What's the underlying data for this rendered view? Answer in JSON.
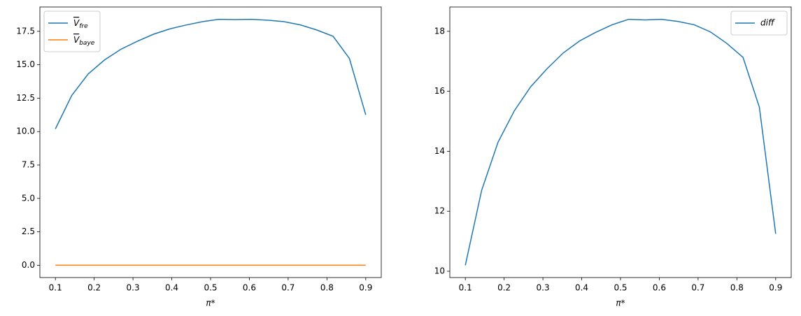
{
  "chart_data": [
    {
      "type": "line",
      "xlabel": "π*",
      "legend": "upper left",
      "x": [
        0.1,
        0.1421,
        0.1842,
        0.2263,
        0.2684,
        0.3105,
        0.3526,
        0.3947,
        0.4368,
        0.4789,
        0.5211,
        0.5632,
        0.6053,
        0.6474,
        0.6895,
        0.7316,
        0.7737,
        0.8158,
        0.8579,
        0.9
      ],
      "series": [
        {
          "name": "Vfre",
          "color": "#1f77b4",
          "values": [
            10.2,
            12.7,
            14.3,
            15.35,
            16.15,
            16.75,
            17.28,
            17.68,
            17.97,
            18.22,
            18.4,
            18.38,
            18.4,
            18.33,
            18.22,
            17.98,
            17.6,
            17.13,
            15.47,
            11.25
          ]
        },
        {
          "name": "Vbaye",
          "color": "#ff7f0e",
          "values": [
            0,
            0,
            0,
            0,
            0,
            0,
            0,
            0,
            0,
            0,
            0,
            0,
            0,
            0,
            0,
            0,
            0,
            0,
            0,
            0
          ]
        }
      ],
      "xlim": [
        0.06,
        0.94
      ],
      "xticks": [
        0.1,
        0.2,
        0.3,
        0.4,
        0.5,
        0.6,
        0.7,
        0.8,
        0.9
      ],
      "ylim": [
        -0.92,
        19.32
      ],
      "yticks": [
        {
          "value": 0,
          "label": "0.0"
        },
        {
          "value": 2.5,
          "label": "2.5"
        },
        {
          "value": 5,
          "label": "5.0"
        },
        {
          "value": 7.5,
          "label": "7.5"
        },
        {
          "value": 10,
          "label": "10.0"
        },
        {
          "value": 12.5,
          "label": "12.5"
        },
        {
          "value": 15,
          "label": "15.0"
        },
        {
          "value": 17.5,
          "label": "17.5"
        }
      ]
    },
    {
      "type": "line",
      "xlabel": "π*",
      "legend": "upper right",
      "x": [
        0.1,
        0.1421,
        0.1842,
        0.2263,
        0.2684,
        0.3105,
        0.3526,
        0.3947,
        0.4368,
        0.4789,
        0.5211,
        0.5632,
        0.6053,
        0.6474,
        0.6895,
        0.7316,
        0.7737,
        0.8158,
        0.8579,
        0.9
      ],
      "series": [
        {
          "name": "diff",
          "color": "#1f77b4",
          "values": [
            10.2,
            12.7,
            14.3,
            15.35,
            16.15,
            16.75,
            17.28,
            17.68,
            17.97,
            18.22,
            18.4,
            18.38,
            18.4,
            18.33,
            18.22,
            17.98,
            17.6,
            17.13,
            15.47,
            11.25
          ]
        }
      ],
      "xlim": [
        0.06,
        0.94
      ],
      "xticks": [
        0.1,
        0.2,
        0.3,
        0.4,
        0.5,
        0.6,
        0.7,
        0.8,
        0.9
      ],
      "ylim": [
        9.79,
        18.81
      ],
      "yticks": [
        10,
        12,
        14,
        16,
        18
      ]
    }
  ]
}
